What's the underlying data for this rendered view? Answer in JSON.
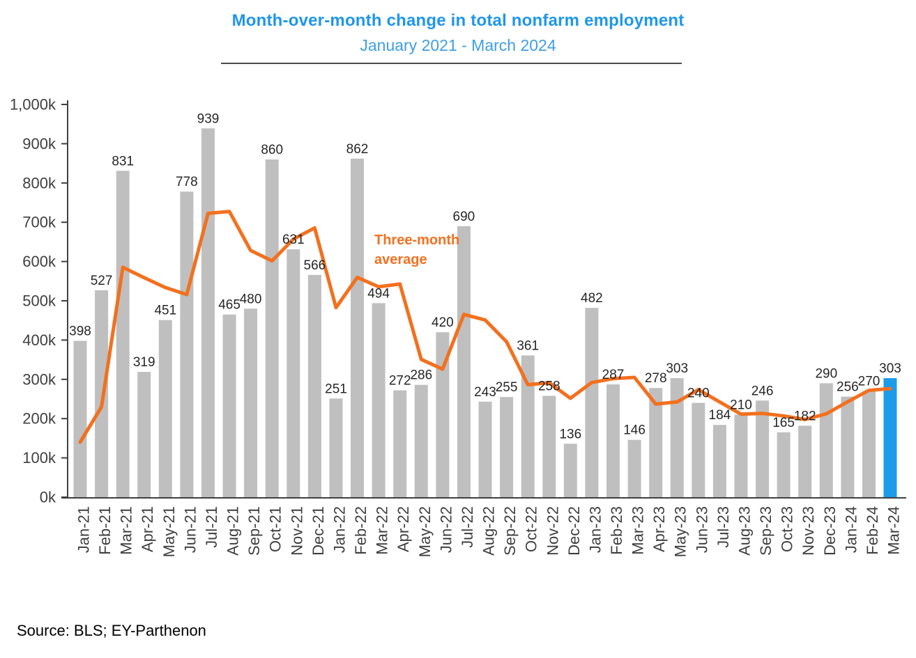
{
  "header": {
    "title": "Month-over-month change in total nonfarm employment",
    "subtitle": "January 2021 - March 2024"
  },
  "footer": {
    "source": "Source: BLS; EY-Parthenon"
  },
  "theme": {
    "title_blue": "#1e96ec",
    "subtitle_blue": "#3e9ee6",
    "bar_gray": "#bfbfbf",
    "highlight_blue": "#1b9be9",
    "line_orange": "#f3701e",
    "axis_gray": "#404040",
    "label_dark": "#262626"
  },
  "chart_data": {
    "type": "bar",
    "title": "Month-over-month change in total nonfarm employment",
    "subtitle": "January 2021 - March 2024",
    "xlabel": "",
    "ylabel": "",
    "ylim": [
      0,
      1000
    ],
    "y_tick_labels": [
      "0k",
      "100k",
      "200k",
      "300k",
      "400k",
      "500k",
      "600k",
      "700k",
      "800k",
      "900k",
      "1,000k"
    ],
    "grid": false,
    "data_labels": true,
    "legend_position": "inline-annotation",
    "categories": [
      "Jan-21",
      "Feb-21",
      "Mar-21",
      "Apr-21",
      "May-21",
      "Jun-21",
      "Jul-21",
      "Aug-21",
      "Sep-21",
      "Oct-21",
      "Nov-21",
      "Dec-21",
      "Jan-22",
      "Feb-22",
      "Mar-22",
      "Apr-22",
      "May-22",
      "Jun-22",
      "Jul-22",
      "Aug-22",
      "Sep-22",
      "Oct-22",
      "Nov-22",
      "Dec-22",
      "Jan-23",
      "Feb-23",
      "Mar-23",
      "Apr-23",
      "May-23",
      "Jun-23",
      "Jul-23",
      "Aug-23",
      "Sep-23",
      "Oct-23",
      "Nov-23",
      "Dec-23",
      "Jan-24",
      "Feb-24",
      "Mar-24"
    ],
    "series": [
      {
        "name": "Month-over-month change in total nonfarm employment (thousands)",
        "type": "bar",
        "color": "#bfbfbf",
        "highlight_last": true,
        "highlight_color": "#1b9be9",
        "values": [
          398,
          527,
          831,
          319,
          451,
          778,
          939,
          465,
          480,
          860,
          631,
          566,
          251,
          862,
          494,
          272,
          286,
          420,
          690,
          243,
          255,
          361,
          258,
          136,
          482,
          287,
          146,
          278,
          303,
          240,
          184,
          210,
          246,
          165,
          182,
          290,
          256,
          270,
          303
        ]
      },
      {
        "name": "Three-month average",
        "type": "line",
        "color": "#f3701e",
        "values": [
          140,
          230,
          585.3,
          559,
          533.7,
          516,
          722.7,
          727.3,
          628,
          601.7,
          657,
          685.7,
          482.7,
          559.7,
          535.7,
          542.7,
          350.7,
          326,
          465.3,
          451,
          396,
          286.3,
          291.3,
          251.7,
          292,
          301.7,
          305,
          237,
          242.3,
          273.7,
          242.3,
          211.3,
          213.3,
          207,
          197.7,
          212.3,
          242.7,
          272,
          276.3
        ]
      }
    ],
    "annotation": {
      "line1": "Three-month",
      "line2": "average"
    }
  }
}
